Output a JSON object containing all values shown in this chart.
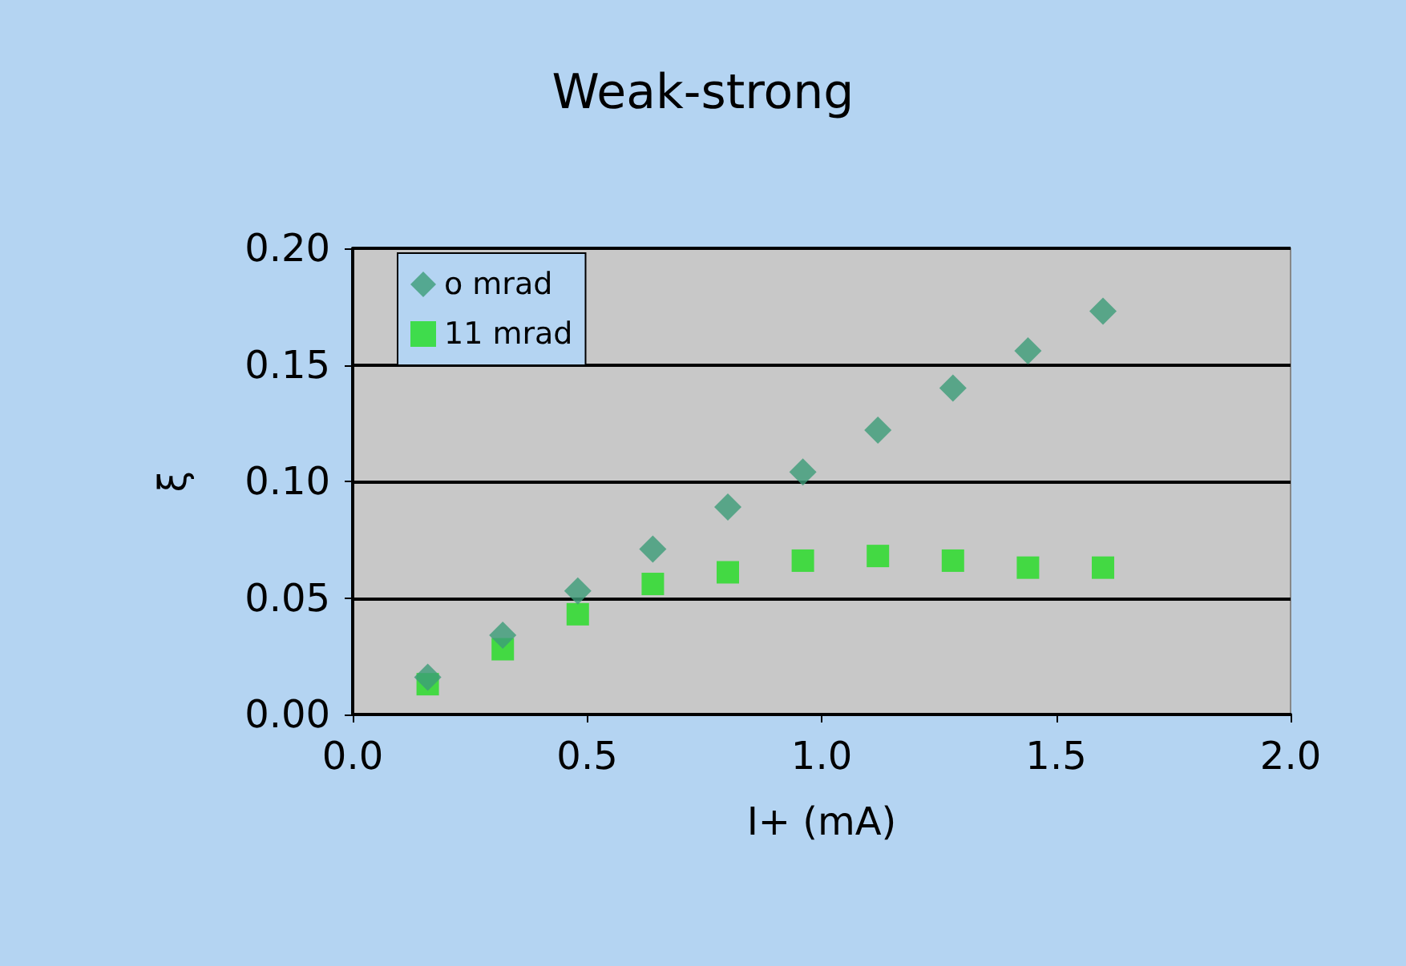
{
  "chart_data": {
    "type": "scatter",
    "title": "Weak-strong",
    "xlabel": "I+ (mA)",
    "ylabel": "ξ",
    "x": [
      0.16,
      0.32,
      0.48,
      0.64,
      0.8,
      0.96,
      1.12,
      1.28,
      1.44,
      1.6
    ],
    "series": [
      {
        "name": "o mrad",
        "color": "#3c9c78",
        "marker": "diamond",
        "values": [
          0.016,
          0.034,
          0.053,
          0.071,
          0.089,
          0.104,
          0.122,
          0.14,
          0.156,
          0.173
        ]
      },
      {
        "name": "11 mrad",
        "color": "#22dd22",
        "marker": "square",
        "values": [
          0.013,
          0.028,
          0.043,
          0.056,
          0.061,
          0.066,
          0.068,
          0.066,
          0.063,
          0.063
        ]
      }
    ],
    "xlim": [
      0,
      2
    ],
    "xticks": [
      {
        "value": 0,
        "label": "0.0"
      },
      {
        "value": 0.5,
        "label": "0.5"
      },
      {
        "value": 1,
        "label": "1.0"
      },
      {
        "value": 1.5,
        "label": "1.5"
      },
      {
        "value": 2,
        "label": "2.0"
      }
    ],
    "ylim": [
      0,
      0.2
    ],
    "yticks": [
      {
        "value": 0,
        "label": "0.00"
      },
      {
        "value": 0.05,
        "label": "0.05"
      },
      {
        "value": 0.1,
        "label": "0.10"
      },
      {
        "value": 0.15,
        "label": "0.15"
      },
      {
        "value": 0.2,
        "label": "0.20"
      }
    ],
    "grid": "y",
    "legend": "top left"
  }
}
